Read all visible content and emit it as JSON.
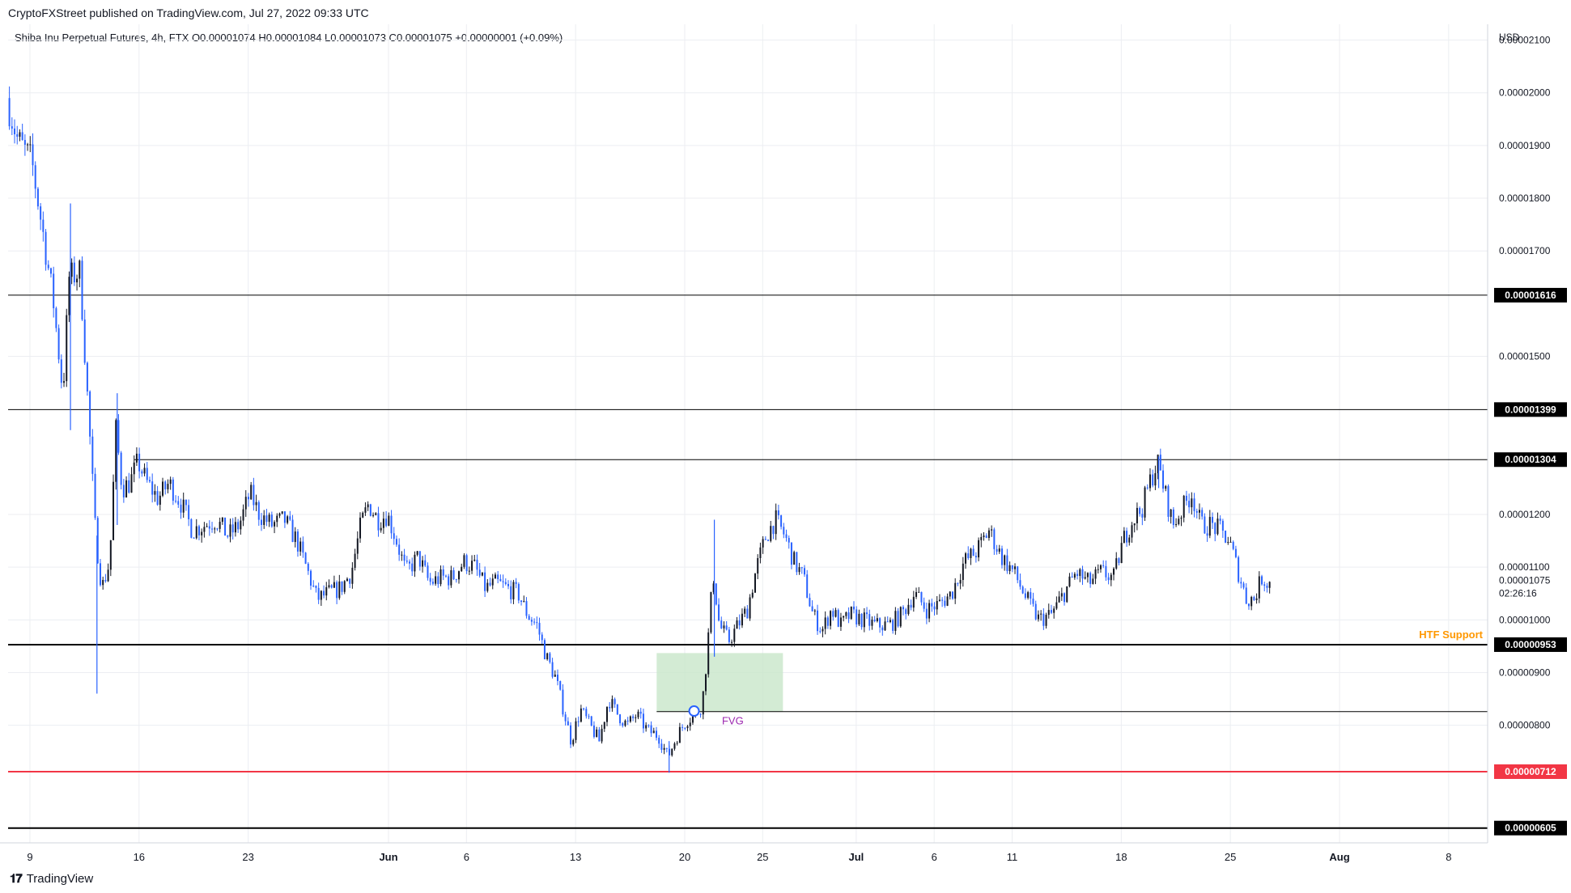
{
  "header": {
    "publisher_line": "CryptoFXStreet published on TradingView.com, Jul 27, 2022 09:33 UTC",
    "legend_line": "Shiba Inu Perpetual Futures, 4h, FTX  O0.00001074  H0.00001084  L0.00001073  C0.00001075  +0.00000001 (+0.09%)"
  },
  "footer": {
    "brand": "TradingView",
    "brand_icon": "tradingview-logo-icon"
  },
  "colors": {
    "up": "#131722",
    "down": "#2962ff",
    "grid": "#eceef2",
    "level_line": "#000000",
    "red_level": "#f23645",
    "htf_label": "#ff9800",
    "fvg_fill": "#c8e6c9",
    "fvg_label": "#9c27b0"
  },
  "chart_data": {
    "type": "candlestick",
    "title": "Shiba Inu Perpetual Futures, 4h, FTX",
    "currency_label": "USD",
    "last_price_label": "0.00001075",
    "countdown_label": "02:26:16",
    "ylim": [
      5.8e-06,
      2.13e-05
    ],
    "y_ticks": [
      "0.00002100",
      "0.00002000",
      "0.00001900",
      "0.00001800",
      "0.00001700",
      "0.00001500",
      "0.00001200",
      "0.00001100",
      "0.00001000",
      "0.00000900",
      "0.00000800"
    ],
    "x_ticks": [
      "9",
      "16",
      "23",
      "Jun",
      "6",
      "13",
      "20",
      "25",
      "Jul",
      "6",
      "11",
      "18",
      "25",
      "Aug",
      "8"
    ],
    "x_tick_days": [
      9,
      16,
      23,
      32,
      37,
      44,
      51,
      56,
      62,
      67,
      72,
      79,
      86,
      93,
      100
    ],
    "time_unit": "day of period (May 1, 2022 = day 1)",
    "xlim_days": [
      7.6,
      102.5
    ],
    "levels": [
      {
        "price": 1.616e-05,
        "label": "0.00001616",
        "color": "#000000",
        "start_day": 7.6
      },
      {
        "price": 1.399e-05,
        "label": "0.00001399",
        "color": "#000000",
        "start_day": 7.6
      },
      {
        "price": 1.304e-05,
        "label": "0.00001304",
        "color": "#000000",
        "start_day": 15.7
      },
      {
        "price": 9.53e-06,
        "label": "0.00000953",
        "color": "#000000",
        "start_day": 7.6
      },
      {
        "price": 7.12e-06,
        "label": "0.00000712",
        "color": "#f23645",
        "start_day": 7.6
      },
      {
        "price": 6.05e-06,
        "label": "0.00000605",
        "color": "#000000",
        "start_day": 7.6
      }
    ],
    "fvg": {
      "label": "FVG",
      "start_day": 49.2,
      "end_day": 57.3,
      "top": 9.37e-06,
      "bottom": 8.26e-06,
      "line_price": 8.26e-06
    },
    "htf_support_label": "HTF Support",
    "marker": {
      "day": 51.6,
      "price": 8.27e-06
    },
    "price_path": [
      [
        7.6,
        1.99e-05
      ],
      [
        8.3,
        1.91e-05
      ],
      [
        9.2,
        1.87e-05
      ],
      [
        10.0,
        1.72e-05
      ],
      [
        10.6,
        1.6e-05
      ],
      [
        11.2,
        1.43e-05
      ],
      [
        11.6,
        1.65e-05
      ],
      [
        12.3,
        1.66e-05
      ],
      [
        12.8,
        1.41e-05
      ],
      [
        13.3,
        1.16e-05
      ],
      [
        13.7,
        1.06e-05
      ],
      [
        14.2,
        1.11e-05
      ],
      [
        14.6,
        1.36e-05
      ],
      [
        15.0,
        1.25e-05
      ],
      [
        15.5,
        1.26e-05
      ],
      [
        16.0,
        1.3e-05
      ],
      [
        16.6,
        1.26e-05
      ],
      [
        17.3,
        1.23e-05
      ],
      [
        18.0,
        1.26e-05
      ],
      [
        18.8,
        1.22e-05
      ],
      [
        19.5,
        1.17e-05
      ],
      [
        20.3,
        1.18e-05
      ],
      [
        21.0,
        1.19e-05
      ],
      [
        21.8,
        1.16e-05
      ],
      [
        22.5,
        1.18e-05
      ],
      [
        23.2,
        1.24e-05
      ],
      [
        23.8,
        1.2e-05
      ],
      [
        24.6,
        1.18e-05
      ],
      [
        25.4,
        1.19e-05
      ],
      [
        26.2,
        1.15e-05
      ],
      [
        26.8,
        1.1e-05
      ],
      [
        27.5,
        1.04e-05
      ],
      [
        28.2,
        1.05e-05
      ],
      [
        29.0,
        1.06e-05
      ],
      [
        29.7,
        1.09e-05
      ],
      [
        30.3,
        1.18e-05
      ],
      [
        30.8,
        1.22e-05
      ],
      [
        31.4,
        1.19e-05
      ],
      [
        32.0,
        1.2e-05
      ],
      [
        32.6,
        1.15e-05
      ],
      [
        33.2,
        1.09e-05
      ],
      [
        34.0,
        1.12e-05
      ],
      [
        34.7,
        1.07e-05
      ],
      [
        35.5,
        1.08e-05
      ],
      [
        36.2,
        1.08e-05
      ],
      [
        36.9,
        1.11e-05
      ],
      [
        37.6,
        1.1e-05
      ],
      [
        38.3,
        1.06e-05
      ],
      [
        39.0,
        1.07e-05
      ],
      [
        39.7,
        1.06e-05
      ],
      [
        40.4,
        1.05e-05
      ],
      [
        41.0,
        1.01e-05
      ],
      [
        41.6,
        9.9e-06
      ],
      [
        42.2,
        9.3e-06
      ],
      [
        42.8,
        8.9e-06
      ],
      [
        43.3,
        8.3e-06
      ],
      [
        43.8,
        7.7e-06
      ],
      [
        44.4,
        8.3e-06
      ],
      [
        45.0,
        8e-06
      ],
      [
        45.6,
        7.7e-06
      ],
      [
        46.2,
        8.5e-06
      ],
      [
        46.8,
        8.2e-06
      ],
      [
        47.4,
        8e-06
      ],
      [
        48.0,
        8.2e-06
      ],
      [
        48.7,
        7.9e-06
      ],
      [
        49.4,
        7.8e-06
      ],
      [
        50.0,
        7.4e-06
      ],
      [
        50.6,
        7.8e-06
      ],
      [
        51.2,
        8.1e-06
      ],
      [
        51.8,
        8.2e-06
      ],
      [
        52.2,
        8.4e-06
      ],
      [
        52.5,
        9.3e-06
      ],
      [
        52.9,
        1.09e-05
      ],
      [
        53.3,
        9.9e-06
      ],
      [
        53.9,
        9.6e-06
      ],
      [
        54.5,
        9.9e-06
      ],
      [
        55.1,
        1.02e-05
      ],
      [
        55.7,
        1.1e-05
      ],
      [
        56.3,
        1.16e-05
      ],
      [
        56.9,
        1.19e-05
      ],
      [
        57.5,
        1.16e-05
      ],
      [
        58.1,
        1.11e-05
      ],
      [
        58.7,
        1.08e-05
      ],
      [
        59.3,
        1.01e-05
      ],
      [
        59.9,
        9.8e-06
      ],
      [
        60.5,
        1.02e-05
      ],
      [
        61.1,
        9.9e-06
      ],
      [
        61.7,
        1.01e-05
      ],
      [
        62.5,
        1e-05
      ],
      [
        63.3,
        9.9e-06
      ],
      [
        64.2,
        9.9e-06
      ],
      [
        65.0,
        1.01e-05
      ],
      [
        65.8,
        1.05e-05
      ],
      [
        66.6,
        1.02e-05
      ],
      [
        67.4,
        1.03e-05
      ],
      [
        68.2,
        1.05e-05
      ],
      [
        69.0,
        1.11e-05
      ],
      [
        69.8,
        1.13e-05
      ],
      [
        70.6,
        1.17e-05
      ],
      [
        71.4,
        1.12e-05
      ],
      [
        72.2,
        1.09e-05
      ],
      [
        73.0,
        1.04e-05
      ],
      [
        73.8,
        1e-05
      ],
      [
        74.6,
        1.01e-05
      ],
      [
        75.4,
        1.05e-05
      ],
      [
        76.2,
        1.09e-05
      ],
      [
        77.0,
        1.07e-05
      ],
      [
        77.8,
        1.09e-05
      ],
      [
        78.6,
        1.08e-05
      ],
      [
        79.2,
        1.15e-05
      ],
      [
        79.8,
        1.19e-05
      ],
      [
        80.4,
        1.21e-05
      ],
      [
        80.9,
        1.26e-05
      ],
      [
        81.4,
        1.3e-05
      ],
      [
        81.9,
        1.24e-05
      ],
      [
        82.4,
        1.18e-05
      ],
      [
        83.0,
        1.21e-05
      ],
      [
        83.6,
        1.24e-05
      ],
      [
        84.2,
        1.18e-05
      ],
      [
        84.8,
        1.18e-05
      ],
      [
        85.4,
        1.17e-05
      ],
      [
        86.0,
        1.15e-05
      ],
      [
        86.6,
        1.09e-05
      ],
      [
        87.1,
        1.04e-05
      ],
      [
        87.6,
        1.04e-05
      ],
      [
        88.1,
        1.08e-05
      ],
      [
        88.5,
        1.07e-05
      ]
    ],
    "spike_wicks": [
      {
        "day": 11.6,
        "high": 1.79e-05,
        "low": 1.36e-05
      },
      {
        "day": 13.3,
        "high": 1.16e-05,
        "low": 8.6e-06
      },
      {
        "day": 14.6,
        "high": 1.43e-05,
        "low": 1.18e-05
      },
      {
        "day": 52.9,
        "high": 1.19e-05,
        "low": 9.3e-06
      },
      {
        "day": 50.0,
        "high": 7.7e-06,
        "low": 7.1e-06
      },
      {
        "day": 81.4,
        "high": 1.31e-05,
        "low": 1.25e-05
      }
    ]
  }
}
